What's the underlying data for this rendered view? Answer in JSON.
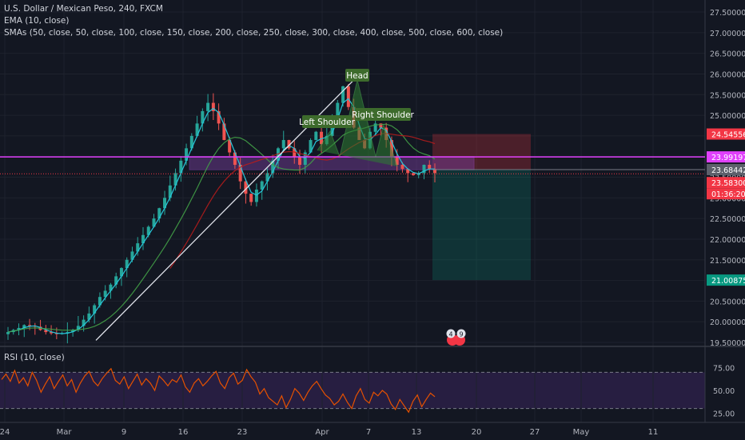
{
  "header": {
    "symbol_line": "U.S. Dollar / Mexican Peso, 240, FXCM",
    "ema_line": "EMA (10, close)",
    "sma_line": "SMAs (50, close, 50, close, 100, close, 150, close, 200, close, 250, close, 300, close, 400, close, 500, close, 600, close)"
  },
  "rsi": {
    "label": "RSI (10, close)",
    "ticks": [
      "75.00",
      "50.00",
      "25.00"
    ],
    "upper_band": 70,
    "lower_band": 30
  },
  "price_axis": {
    "ticks": [
      "27.50000",
      "27.00000",
      "26.50000",
      "26.00000",
      "25.50000",
      "25.00000",
      "24.50000",
      "24.00000",
      "23.50000",
      "23.00000",
      "22.50000",
      "22.00000",
      "21.50000",
      "21.00000",
      "20.50000",
      "20.00000",
      "19.50000"
    ],
    "min": 19.5,
    "max": 27.5
  },
  "price_tags": [
    {
      "text": "24.54556",
      "color": "#f23645"
    },
    {
      "text": "23.99197",
      "color": "#e040fb"
    },
    {
      "text": "23.68442",
      "color": "#5d606b"
    },
    {
      "text": "23.58300",
      "color": "#f23645"
    },
    {
      "text": "01:36:20",
      "color": "#f23645"
    },
    {
      "text": "21.00875",
      "color": "#089981"
    }
  ],
  "time_axis": [
    "24",
    "Mar",
    "9",
    "16",
    "23",
    "Apr",
    "7",
    "13",
    "20",
    "27",
    "May",
    "11"
  ],
  "annotations": {
    "head": "Head",
    "left_shoulder": "Left Shoulder",
    "right_shoulder": "Right Shoulder"
  },
  "event_badges": [
    "4",
    "9"
  ],
  "chart_data": {
    "type": "candlestick",
    "title": "U.S. Dollar / Mexican Peso, 240, FXCM",
    "close_series_approx": [
      19.75,
      19.8,
      19.85,
      19.92,
      19.9,
      19.88,
      19.8,
      19.75,
      19.72,
      19.7,
      19.72,
      19.75,
      19.8,
      19.9,
      20.05,
      20.2,
      20.4,
      20.6,
      20.75,
      20.9,
      21.1,
      21.3,
      21.5,
      21.7,
      21.9,
      22.1,
      22.3,
      22.5,
      22.75,
      23.0,
      23.3,
      23.6,
      23.9,
      24.2,
      24.5,
      24.8,
      25.1,
      25.3,
      25.1,
      24.8,
      24.4,
      24.1,
      23.8,
      23.4,
      23.1,
      22.9,
      23.2,
      23.4,
      23.6,
      23.9,
      24.2,
      24.4,
      24.2,
      24.0,
      23.8,
      24.1,
      24.4,
      24.6,
      24.3,
      24.5,
      24.9,
      25.3,
      25.7,
      25.2,
      24.7,
      24.4,
      24.2,
      24.6,
      24.8,
      24.7,
      24.4,
      24.0,
      23.8,
      23.7,
      23.6,
      23.55,
      23.6,
      23.8,
      23.7,
      23.6
    ],
    "horizontal_levels": [
      {
        "value": 23.99197,
        "color": "#e040fb"
      },
      {
        "value": 23.68442,
        "color": "#787b86"
      },
      {
        "value": 23.583,
        "color": "#f23645"
      }
    ],
    "range_zone": {
      "top": 24.0,
      "bottom": 23.68
    },
    "short_position": {
      "entry": 23.68442,
      "stop": 24.54556,
      "target": 21.00875
    },
    "rsi_values_approx": [
      62,
      68,
      60,
      72,
      58,
      64,
      55,
      70,
      61,
      48,
      57,
      65,
      52,
      60,
      67,
      55,
      62,
      48,
      58,
      66,
      71,
      60,
      55,
      63,
      69,
      74,
      61,
      57,
      65,
      52,
      60,
      68,
      56,
      63,
      58,
      50,
      66,
      61,
      55,
      62,
      59,
      67,
      54,
      48,
      58,
      63,
      55,
      60,
      66,
      71,
      58,
      52,
      64,
      69,
      57,
      61,
      73,
      65,
      59,
      46,
      52,
      42,
      38,
      34,
      44,
      31,
      40,
      52,
      47,
      39,
      48,
      55,
      60,
      52,
      45,
      41,
      34,
      38,
      46,
      37,
      30,
      44,
      52,
      40,
      36,
      48,
      44,
      50,
      46,
      35,
      29,
      40,
      33,
      26,
      38,
      45,
      32,
      40,
      47,
      43
    ]
  }
}
